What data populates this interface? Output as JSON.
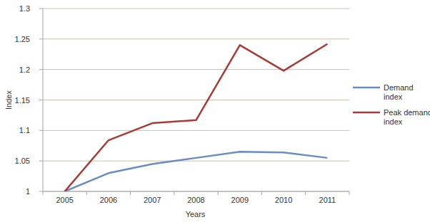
{
  "chart_data": {
    "type": "line",
    "x_label": "Years",
    "y_label": "Index",
    "categories": [
      "2005",
      "2006",
      "2007",
      "2008",
      "2009",
      "2010",
      "2011"
    ],
    "series": [
      {
        "name": "Demand index",
        "color": "#6a8cc4",
        "values": [
          1,
          1.03,
          1.045,
          1.055,
          1.065,
          1.064,
          1.055
        ]
      },
      {
        "name": "Peak demand index",
        "color": "#a83b36",
        "values": [
          1,
          1.084,
          1.112,
          1.117,
          1.24,
          1.198,
          1.242
        ]
      }
    ],
    "ylim": [
      1,
      1.3
    ],
    "yticks": [
      1,
      1.05,
      1.1,
      1.15,
      1.2,
      1.25,
      1.3
    ],
    "grid": true,
    "legend": "right"
  }
}
